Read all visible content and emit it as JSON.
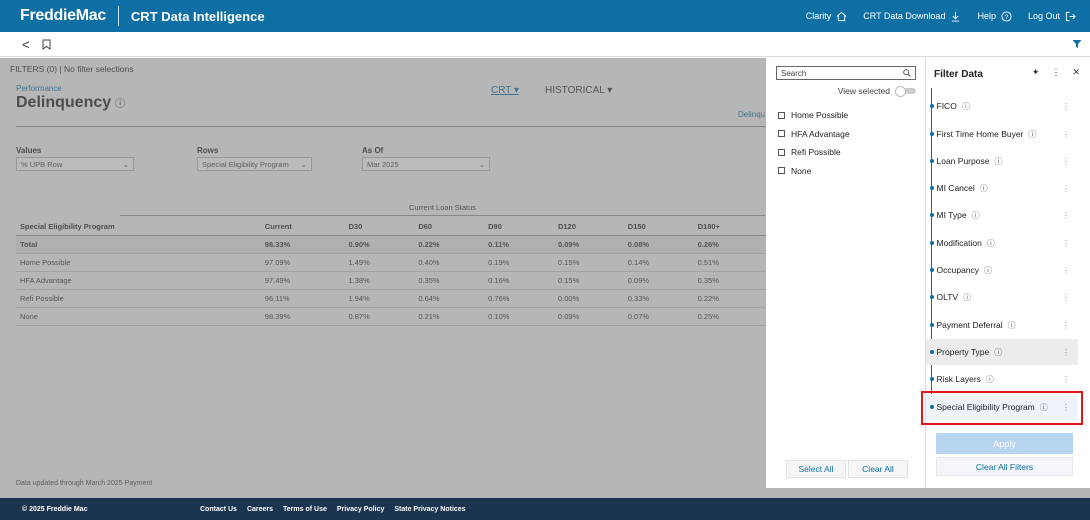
{
  "header": {
    "logo": "FreddieMac",
    "app_title": "CRT Data Intelligence",
    "nav": [
      {
        "label": "Clarity",
        "icon": "home-icon"
      },
      {
        "label": "CRT Data Download",
        "icon": "download-icon"
      },
      {
        "label": "Help",
        "icon": "help-icon"
      },
      {
        "label": "Log Out",
        "icon": "logout-icon"
      }
    ]
  },
  "subbar": {
    "back": "<",
    "bookmark_icon": "bookmark-icon",
    "filter_icon": "funnel-icon"
  },
  "page": {
    "filters_status": "FILTERS (0)  |  No filter selections",
    "breadcrumb": "Performance",
    "title": "Delinquency",
    "title_info": "ⓘ",
    "tabs": [
      "CRT ▾",
      "HISTORICAL ▾"
    ],
    "right_tab": "Delinqu",
    "controls": {
      "values_label": "Values",
      "values_value": "% UPB Row",
      "rows_label": "Rows",
      "rows_value": "Special Eligibility Program",
      "asof_label": "As Of",
      "asof_value": "Mar 2025"
    },
    "data_updated": "Data updated through March 2025 Payment"
  },
  "table": {
    "group_header": "Current Loan Status",
    "columns": [
      "Special Eligibility Program",
      "Current",
      "D30",
      "D60",
      "D90",
      "D120",
      "D150",
      "D180+"
    ],
    "rows": [
      [
        "Total",
        "98.33%",
        "0.90%",
        "0.22%",
        "0.11%",
        "0.09%",
        "0.08%",
        "0.26%"
      ],
      [
        "Home Possible",
        "97.09%",
        "1.49%",
        "0.40%",
        "0.19%",
        "0.15%",
        "0.14%",
        "0.51%"
      ],
      [
        "HFA Advantage",
        "97.49%",
        "1.38%",
        "0.35%",
        "0.16%",
        "0.15%",
        "0.09%",
        "0.35%"
      ],
      [
        "Refi Possible",
        "96.11%",
        "1.94%",
        "0.64%",
        "0.76%",
        "0.00%",
        "0.33%",
        "0.22%"
      ],
      [
        "None",
        "98.39%",
        "0.87%",
        "0.21%",
        "0.10%",
        "0.09%",
        "0.07%",
        "0.25%"
      ]
    ]
  },
  "options_panel": {
    "search_placeholder": "Search",
    "view_selected": "View selected",
    "options": [
      "Home Possible",
      "HFA Advantage",
      "Refi Possible",
      "None"
    ],
    "select_all": "Select All",
    "clear_all": "Clear All"
  },
  "filter_panel": {
    "title": "Filter Data",
    "icons": [
      "pin-icon",
      "more-icon",
      "close-icon"
    ],
    "items": [
      "FICO",
      "First Time Home Buyer",
      "Loan Purpose",
      "MI Cancel",
      "MI Type",
      "Modification",
      "Occupancy",
      "OLTV",
      "Payment Deferral",
      "Property Type",
      "Risk Layers",
      "Special Eligibility Program"
    ],
    "apply": "Apply",
    "clear_all_filters": "Clear All Filters"
  },
  "footer": {
    "copyright": "© 2025 Freddie Mac",
    "links": [
      "Contact Us",
      "Careers",
      "Terms of Use",
      "Privacy Policy",
      "State Privacy Notices"
    ]
  }
}
